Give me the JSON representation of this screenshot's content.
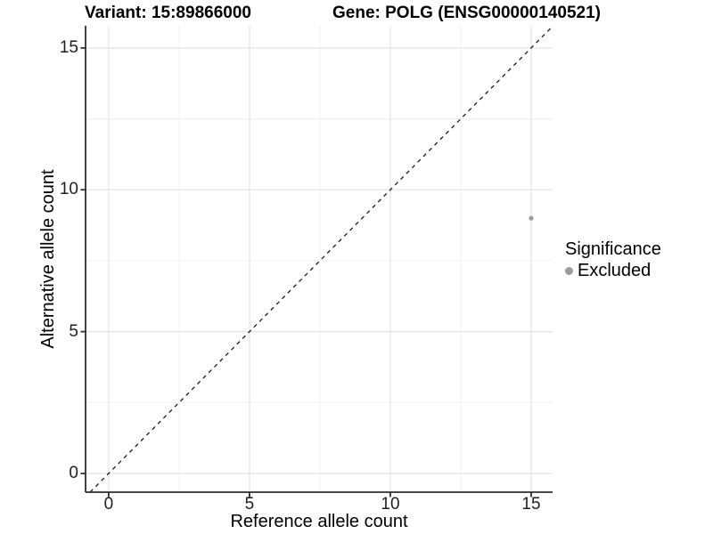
{
  "chart_data": {
    "type": "scatter",
    "title_left": "Variant: 15:89866000",
    "title_right": "Gene: POLG (ENSG00000140521)",
    "xlabel": "Reference allele count",
    "ylabel": "Alternative allele count",
    "x_ticks": [
      0,
      5,
      10,
      15
    ],
    "y_ticks": [
      0,
      5,
      10,
      15
    ],
    "x_minor": [
      2.5,
      7.5,
      12.5
    ],
    "y_minor": [
      2.5,
      7.5,
      12.5
    ],
    "xlim": [
      -0.82,
      15.76
    ],
    "ylim": [
      -0.66,
      15.78
    ],
    "grid": true,
    "legend_position": "right",
    "series": [
      {
        "name": "Excluded",
        "color": "#9c9c9c",
        "points": [
          {
            "x": 15,
            "y": 9
          }
        ]
      }
    ],
    "abline": {
      "slope": 1,
      "intercept": 0,
      "linetype": "dashed",
      "color": "#1a1a1a"
    },
    "legend": {
      "title": "Significance",
      "items": [
        {
          "label": "Excluded",
          "color": "#9c9c9c"
        }
      ]
    }
  },
  "colors": {
    "background": "#ffffff",
    "grid_major": "#e4e4e4",
    "grid_minor": "#f1f1f1",
    "axis": "#2e2e2e",
    "tick_text": "#1f1f1f",
    "title_text": "#000000"
  }
}
